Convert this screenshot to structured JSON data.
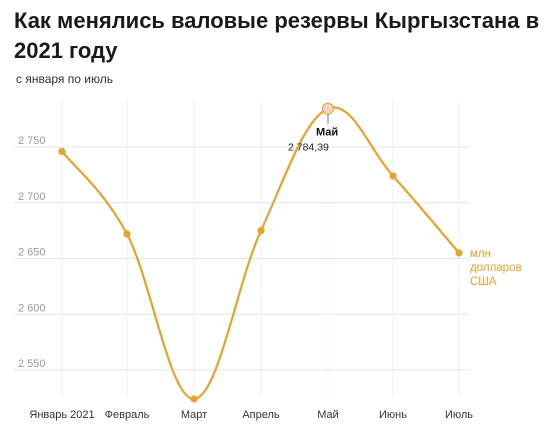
{
  "chart_data": {
    "type": "line",
    "title": "Как менялись валовые резервы Кыргызстана в 2021 году",
    "subtitle": "с января по июль",
    "categories": [
      "Январь 2021",
      "Февраль",
      "Март",
      "Апрель",
      "Май",
      "Июнь",
      "Июль"
    ],
    "series": [
      {
        "name": "млн долларов США",
        "values": [
          2746,
          2672,
          2524,
          2675,
          2784.39,
          2724,
          2655
        ]
      }
    ],
    "y_ticks": [
      "2 750",
      "2 700",
      "2 650",
      "2 600",
      "2 550"
    ],
    "y_tick_values": [
      2750,
      2700,
      2650,
      2600,
      2550
    ],
    "ylim": [
      2530,
      2800
    ],
    "grid": true,
    "annotation": {
      "category": "Май",
      "label": "Май",
      "value_text": "2 784,39"
    },
    "unit_lines": [
      "млн",
      "долларов",
      "США"
    ],
    "color": "#e8a12b"
  }
}
